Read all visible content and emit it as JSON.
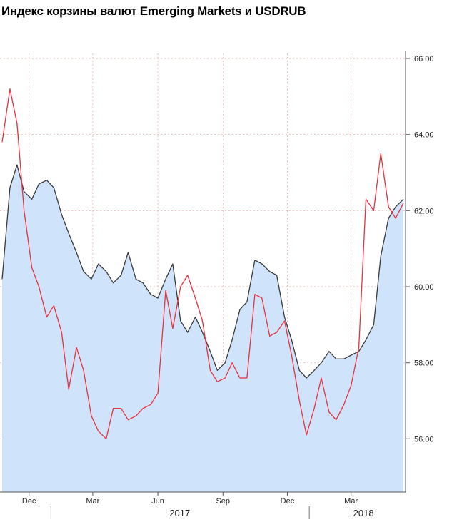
{
  "chart_data": {
    "type": "line",
    "title": "Индекс корзины валют Emerging Markets и USDRUB",
    "ylim": [
      54.6,
      66.6
    ],
    "y_ticks": [
      "56.00",
      "58.00",
      "60.00",
      "62.00",
      "64.00",
      "66.00"
    ],
    "x_tick_labels": [
      "Dec",
      "Mar",
      "Jun",
      "Sep",
      "Dec",
      "Mar"
    ],
    "year_labels": [
      "2017",
      "2018"
    ],
    "y_axis_position": "right",
    "grid": true,
    "x": [
      "2016-10-24",
      "2016-11-04",
      "2016-11-14",
      "2016-11-24",
      "2016-12-05",
      "2016-12-15",
      "2016-12-26",
      "2017-01-05",
      "2017-01-16",
      "2017-01-26",
      "2017-02-06",
      "2017-02-16",
      "2017-02-27",
      "2017-03-09",
      "2017-03-20",
      "2017-03-30",
      "2017-04-10",
      "2017-04-20",
      "2017-05-01",
      "2017-05-11",
      "2017-05-22",
      "2017-06-01",
      "2017-06-12",
      "2017-06-22",
      "2017-07-03",
      "2017-07-13",
      "2017-07-24",
      "2017-08-03",
      "2017-08-14",
      "2017-08-24",
      "2017-09-04",
      "2017-09-14",
      "2017-09-25",
      "2017-10-05",
      "2017-10-16",
      "2017-10-26",
      "2017-11-06",
      "2017-11-16",
      "2017-11-27",
      "2017-12-07",
      "2017-12-18",
      "2017-12-28",
      "2018-01-08",
      "2018-01-18",
      "2018-01-29",
      "2018-02-08",
      "2018-02-19",
      "2018-03-01",
      "2018-03-12",
      "2018-03-22",
      "2018-04-02",
      "2018-04-12",
      "2018-04-23",
      "2018-05-03",
      "2018-05-14"
    ],
    "series": [
      {
        "role": "em_currency_basket_index",
        "color": "#3a3a3a",
        "fill": "#cfe4fb",
        "values": [
          60.2,
          62.6,
          63.2,
          62.5,
          62.3,
          62.7,
          62.8,
          62.6,
          61.9,
          61.4,
          60.9,
          60.4,
          60.2,
          60.6,
          60.4,
          60.1,
          60.3,
          60.9,
          60.2,
          60.1,
          59.8,
          59.7,
          60.2,
          60.6,
          59.1,
          58.8,
          59.2,
          58.8,
          58.3,
          57.8,
          58.0,
          58.6,
          59.4,
          59.6,
          60.7,
          60.6,
          60.4,
          60.3,
          59.2,
          58.6,
          57.8,
          57.6,
          57.8,
          58.0,
          58.3,
          58.1,
          58.1,
          58.2,
          58.3,
          58.6,
          59.0,
          60.8,
          61.8,
          62.1,
          62.3
        ]
      },
      {
        "role": "usdrub",
        "color": "#e8313c",
        "values": [
          63.8,
          65.2,
          64.3,
          62.0,
          60.5,
          60.0,
          59.2,
          59.5,
          58.8,
          57.3,
          58.4,
          57.8,
          56.6,
          56.2,
          56.0,
          56.8,
          56.8,
          56.5,
          56.6,
          56.8,
          56.9,
          57.2,
          59.9,
          58.9,
          60.0,
          60.3,
          59.7,
          59.1,
          57.8,
          57.5,
          57.6,
          58.0,
          57.6,
          57.6,
          59.8,
          59.7,
          58.7,
          58.8,
          59.1,
          58.2,
          57.0,
          56.1,
          56.8,
          57.6,
          56.7,
          56.5,
          56.9,
          57.4,
          58.4,
          62.3,
          62.0,
          63.5,
          62.1,
          61.8,
          62.2
        ]
      }
    ]
  }
}
